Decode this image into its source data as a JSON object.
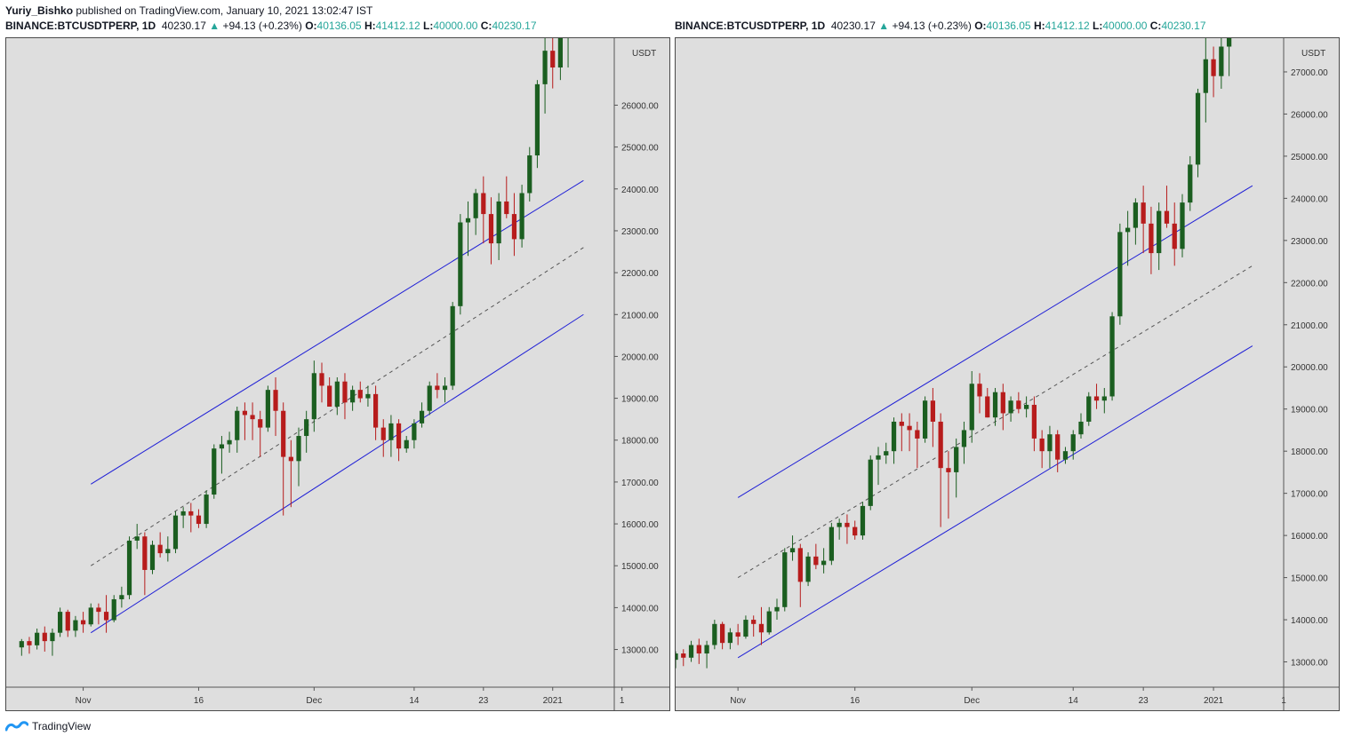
{
  "header": {
    "author": "Yuriy_Bishko",
    "published_text": "published on TradingView.com, January 10, 2021 13:02:47 IST"
  },
  "quote": {
    "symbol": "BINANCE:BTCUSDTPERP, 1D",
    "price": "40230.17",
    "arrow": "▲",
    "change": "+94.13 (+0.23%)",
    "o_label": "O:",
    "o_value": "40136.05",
    "h_label": "H:",
    "h_value": "41412.12",
    "l_label": "L:",
    "l_value": "40000.00",
    "c_label": "C:",
    "c_value": "40230.17"
  },
  "footer": {
    "brand": "TradingView"
  },
  "colors": {
    "bull": "#1b5e20",
    "bear": "#b71c1c",
    "channel": "#1f1fd6",
    "midline": "#555555",
    "pane_bg": "#dedede",
    "accent": "#26a69a"
  },
  "chart_data": [
    {
      "type": "candlestick",
      "currency_label": "USDT",
      "ylim": [
        12100,
        27600
      ],
      "yticks": [
        13000,
        14000,
        15000,
        16000,
        17000,
        18000,
        19000,
        20000,
        21000,
        22000,
        23000,
        24000,
        25000,
        26000
      ],
      "xlim": [
        -2,
        77
      ],
      "xticks": [
        {
          "i": 8,
          "label": "Nov"
        },
        {
          "i": 23,
          "label": "16"
        },
        {
          "i": 38,
          "label": "Dec"
        },
        {
          "i": 51,
          "label": "14"
        },
        {
          "i": 60,
          "label": "23"
        },
        {
          "i": 69,
          "label": "2021"
        },
        {
          "i": 78,
          "label": "1"
        }
      ],
      "channel": {
        "x1": 9,
        "x2": 73,
        "upper": [
          16950,
          24200
        ],
        "mid": [
          15000,
          22600
        ],
        "lower": [
          13400,
          21000
        ]
      }
    },
    {
      "type": "candlestick",
      "currency_label": "USDT",
      "ylim": [
        12400,
        27800
      ],
      "yticks": [
        13000,
        14000,
        15000,
        16000,
        17000,
        18000,
        19000,
        20000,
        21000,
        22000,
        23000,
        24000,
        25000,
        26000,
        27000
      ],
      "xlim": [
        0,
        78
      ],
      "xticks": [
        {
          "i": 8,
          "label": "Nov"
        },
        {
          "i": 23,
          "label": "16"
        },
        {
          "i": 38,
          "label": "Dec"
        },
        {
          "i": 51,
          "label": "14"
        },
        {
          "i": 60,
          "label": "23"
        },
        {
          "i": 69,
          "label": "2021"
        },
        {
          "i": 78,
          "label": "1"
        }
      ],
      "channel": {
        "x1": 8,
        "x2": 74,
        "upper": [
          16900,
          24300
        ],
        "mid": [
          15000,
          22400
        ],
        "lower": [
          13100,
          20500
        ]
      }
    }
  ],
  "candles": [
    [
      13050,
      13250,
      12850,
      13200
    ],
    [
      13200,
      13300,
      12900,
      13100
    ],
    [
      13100,
      13500,
      13000,
      13400
    ],
    [
      13400,
      13550,
      12950,
      13200
    ],
    [
      13200,
      13500,
      12850,
      13400
    ],
    [
      13400,
      14000,
      13300,
      13900
    ],
    [
      13900,
      13950,
      13300,
      13450
    ],
    [
      13450,
      13800,
      13300,
      13700
    ],
    [
      13700,
      13900,
      13400,
      13600
    ],
    [
      13600,
      14100,
      13550,
      14000
    ],
    [
      14000,
      14100,
      13600,
      13900
    ],
    [
      13900,
      14300,
      13400,
      13700
    ],
    [
      13700,
      14300,
      13650,
      14200
    ],
    [
      14200,
      14500,
      14000,
      14300
    ],
    [
      14300,
      15700,
      14200,
      15600
    ],
    [
      15600,
      16000,
      15400,
      15700
    ],
    [
      15700,
      15800,
      14300,
      14900
    ],
    [
      14900,
      15600,
      14800,
      15500
    ],
    [
      15500,
      15800,
      15200,
      15300
    ],
    [
      15300,
      15700,
      15100,
      15400
    ],
    [
      15400,
      16300,
      15300,
      16200
    ],
    [
      16200,
      16400,
      15900,
      16300
    ],
    [
      16300,
      16500,
      15800,
      16200
    ],
    [
      16200,
      16350,
      15900,
      16000
    ],
    [
      16000,
      16800,
      15900,
      16700
    ],
    [
      16700,
      17900,
      16600,
      17800
    ],
    [
      17800,
      18100,
      17200,
      17900
    ],
    [
      17900,
      18200,
      17700,
      18000
    ],
    [
      18000,
      18800,
      17700,
      18700
    ],
    [
      18700,
      18900,
      18000,
      18600
    ],
    [
      18600,
      18900,
      18000,
      18500
    ],
    [
      18500,
      18700,
      17600,
      18300
    ],
    [
      18300,
      19300,
      18200,
      19200
    ],
    [
      19200,
      19500,
      18100,
      18700
    ],
    [
      18700,
      18900,
      16200,
      17600
    ],
    [
      17600,
      18000,
      16400,
      17500
    ],
    [
      17500,
      18300,
      16900,
      18100
    ],
    [
      18100,
      18700,
      17700,
      18500
    ],
    [
      18500,
      19900,
      18200,
      19600
    ],
    [
      19600,
      19850,
      18900,
      19300
    ],
    [
      19300,
      19500,
      18800,
      18800
    ],
    [
      18800,
      19500,
      18600,
      19400
    ],
    [
      19400,
      19600,
      18500,
      18900
    ],
    [
      18900,
      19300,
      18700,
      19200
    ],
    [
      19200,
      19400,
      18900,
      19000
    ],
    [
      19000,
      19300,
      18800,
      19100
    ],
    [
      19100,
      19300,
      18000,
      18300
    ],
    [
      18300,
      18500,
      17600,
      18000
    ],
    [
      18000,
      18600,
      17600,
      18400
    ],
    [
      18400,
      18500,
      17500,
      17800
    ],
    [
      17800,
      18100,
      17700,
      18000
    ],
    [
      18000,
      18500,
      17800,
      18400
    ],
    [
      18400,
      18900,
      18300,
      18700
    ],
    [
      18700,
      19400,
      18600,
      19300
    ],
    [
      19300,
      19600,
      19000,
      19200
    ],
    [
      19200,
      19500,
      18900,
      19300
    ],
    [
      19300,
      21300,
      19200,
      21200
    ],
    [
      21200,
      23400,
      21000,
      23200
    ],
    [
      23200,
      23700,
      22400,
      23300
    ],
    [
      23300,
      24000,
      22900,
      23900
    ],
    [
      23900,
      24300,
      22700,
      23400
    ],
    [
      23400,
      23800,
      22200,
      22700
    ],
    [
      22700,
      23900,
      22300,
      23700
    ],
    [
      23700,
      24300,
      23300,
      23400
    ],
    [
      23400,
      23900,
      22400,
      22800
    ],
    [
      22800,
      24100,
      22600,
      23900
    ],
    [
      23900,
      25000,
      23700,
      24800
    ],
    [
      24800,
      26600,
      24500,
      26500
    ],
    [
      26500,
      28300,
      25800,
      27300
    ],
    [
      27300,
      27600,
      26400,
      26900
    ],
    [
      26900,
      28000,
      26600,
      27600
    ],
    [
      27600,
      29200,
      26900,
      28300
    ]
  ]
}
